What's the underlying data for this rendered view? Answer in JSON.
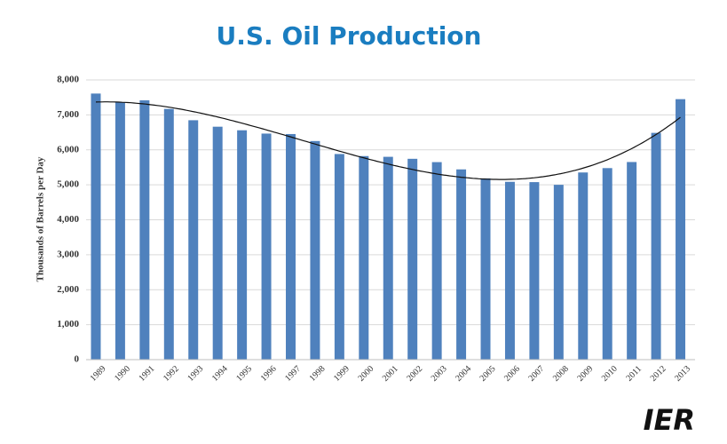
{
  "chart_data": {
    "type": "bar",
    "title": "U.S. Oil Production",
    "y_label": "Thousands of Barrels per Day",
    "logo": "IER",
    "categories": [
      "1989",
      "1990",
      "1991",
      "1992",
      "1993",
      "1994",
      "1995",
      "1996",
      "1997",
      "1998",
      "1999",
      "2000",
      "2001",
      "2002",
      "2003",
      "2004",
      "2005",
      "2006",
      "2007",
      "2008",
      "2009",
      "2010",
      "2011",
      "2012",
      "2013"
    ],
    "values": [
      7610,
      7355,
      7417,
      7171,
      6847,
      6662,
      6560,
      6465,
      6452,
      6252,
      5881,
      5822,
      5801,
      5744,
      5649,
      5441,
      5184,
      5086,
      5077,
      5000,
      5353,
      5478,
      5652,
      6486,
      7450
    ],
    "color": "#4f81bd",
    "trendline": "polynomial",
    "ylim": [
      0,
      8000
    ],
    "yticks": [
      0,
      {
        "value": 1000,
        "label": "1,000"
      },
      {
        "value": 2000,
        "label": "2,000"
      },
      {
        "value": 3000,
        "label": "3,000"
      },
      {
        "value": 4000,
        "label": "4,000"
      },
      {
        "value": 5000,
        "label": "5,000"
      },
      {
        "value": 6000,
        "label": "6,000"
      },
      {
        "value": 7000,
        "label": "7,000"
      },
      {
        "value": 8000,
        "label": "8,000"
      }
    ],
    "grid": true
  }
}
